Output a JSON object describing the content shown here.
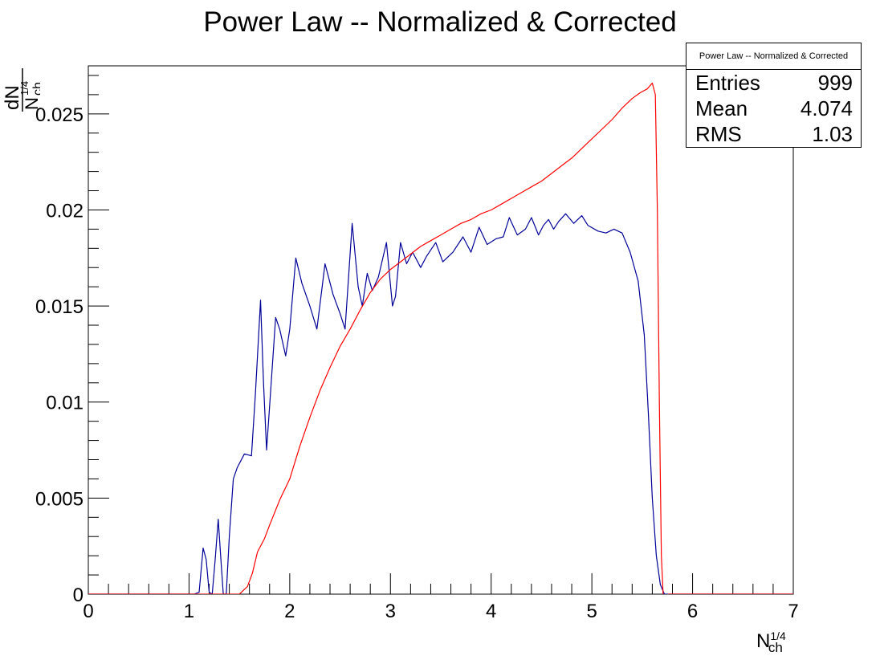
{
  "title": "Power Law -- Normalized & Corrected",
  "stats": {
    "name": "Power Law -- Normalized & Corrected",
    "rows": [
      {
        "label": "Entries",
        "value": "999"
      },
      {
        "label": "Mean",
        "value": "4.074"
      },
      {
        "label": "RMS",
        "value": "1.03"
      }
    ]
  },
  "axis_labels": {
    "x_main": "N",
    "x_sub": "ch",
    "x_sup": "1/4",
    "y_num": "dN",
    "y_den": "N",
    "y_den_sub": "ch",
    "y_den_sup": "1/4"
  },
  "chart_data": {
    "type": "line",
    "title": "Power Law -- Normalized & Corrected",
    "xlim": [
      0,
      7
    ],
    "ylim": [
      0,
      0.0275
    ],
    "x_ticks": [
      0,
      1,
      2,
      3,
      4,
      5,
      6,
      7
    ],
    "y_ticks": [
      0,
      0.005,
      0.01,
      0.015,
      0.02,
      0.025
    ],
    "x_tick_labels": [
      "0",
      "1",
      "2",
      "3",
      "4",
      "5",
      "6",
      "7"
    ],
    "y_tick_labels": [
      "0",
      "0.005",
      "0.01",
      "0.015",
      "0.02",
      "0.025"
    ],
    "grid": false,
    "series": [
      {
        "color": "#000099",
        "points": [
          [
            0,
            0
          ],
          [
            1.05,
            0
          ],
          [
            1.1,
            0.0001
          ],
          [
            1.14,
            0.0024
          ],
          [
            1.17,
            0.0018
          ],
          [
            1.2,
            0.0001
          ],
          [
            1.23,
            0
          ],
          [
            1.26,
            0.0018
          ],
          [
            1.29,
            0.0039
          ],
          [
            1.32,
            0.0015
          ],
          [
            1.34,
            0
          ],
          [
            1.37,
            0
          ],
          [
            1.4,
            0.003
          ],
          [
            1.44,
            0.006
          ],
          [
            1.48,
            0.0066
          ],
          [
            1.55,
            0.0073
          ],
          [
            1.62,
            0.0072
          ],
          [
            1.66,
            0.0105
          ],
          [
            1.71,
            0.0153
          ],
          [
            1.74,
            0.011
          ],
          [
            1.77,
            0.0075
          ],
          [
            1.8,
            0.0098
          ],
          [
            1.86,
            0.0144
          ],
          [
            1.9,
            0.0138
          ],
          [
            1.96,
            0.0124
          ],
          [
            2.0,
            0.0138
          ],
          [
            2.06,
            0.0175
          ],
          [
            2.12,
            0.0162
          ],
          [
            2.2,
            0.015
          ],
          [
            2.27,
            0.0138
          ],
          [
            2.35,
            0.0172
          ],
          [
            2.43,
            0.0156
          ],
          [
            2.5,
            0.0146
          ],
          [
            2.55,
            0.0138
          ],
          [
            2.62,
            0.0193
          ],
          [
            2.68,
            0.016
          ],
          [
            2.72,
            0.015
          ],
          [
            2.77,
            0.0167
          ],
          [
            2.82,
            0.0158
          ],
          [
            2.88,
            0.0165
          ],
          [
            2.96,
            0.0183
          ],
          [
            3.02,
            0.015
          ],
          [
            3.05,
            0.0155
          ],
          [
            3.1,
            0.0183
          ],
          [
            3.16,
            0.0172
          ],
          [
            3.22,
            0.0178
          ],
          [
            3.3,
            0.017
          ],
          [
            3.36,
            0.0176
          ],
          [
            3.45,
            0.0183
          ],
          [
            3.52,
            0.0173
          ],
          [
            3.62,
            0.0178
          ],
          [
            3.72,
            0.0186
          ],
          [
            3.8,
            0.0178
          ],
          [
            3.88,
            0.0191
          ],
          [
            3.96,
            0.0182
          ],
          [
            4.05,
            0.0185
          ],
          [
            4.12,
            0.0186
          ],
          [
            4.18,
            0.0196
          ],
          [
            4.26,
            0.0187
          ],
          [
            4.34,
            0.019
          ],
          [
            4.4,
            0.0196
          ],
          [
            4.47,
            0.0187
          ],
          [
            4.52,
            0.0192
          ],
          [
            4.57,
            0.0195
          ],
          [
            4.62,
            0.019
          ],
          [
            4.67,
            0.0194
          ],
          [
            4.74,
            0.0198
          ],
          [
            4.82,
            0.0193
          ],
          [
            4.9,
            0.0197
          ],
          [
            4.96,
            0.0192
          ],
          [
            5.06,
            0.0189
          ],
          [
            5.14,
            0.0188
          ],
          [
            5.22,
            0.019
          ],
          [
            5.3,
            0.0188
          ],
          [
            5.38,
            0.0178
          ],
          [
            5.46,
            0.0163
          ],
          [
            5.52,
            0.0135
          ],
          [
            5.56,
            0.0095
          ],
          [
            5.6,
            0.005
          ],
          [
            5.64,
            0.002
          ],
          [
            5.68,
            0.0005
          ],
          [
            5.72,
            0
          ],
          [
            7,
            0
          ]
        ]
      },
      {
        "color": "#ff0000",
        "points": [
          [
            0,
            0
          ],
          [
            1.5,
            0
          ],
          [
            1.52,
            0.0001
          ],
          [
            1.58,
            0.0004
          ],
          [
            1.63,
            0.0011
          ],
          [
            1.68,
            0.0022
          ],
          [
            1.75,
            0.0029
          ],
          [
            1.8,
            0.0036
          ],
          [
            1.9,
            0.0049
          ],
          [
            2.0,
            0.006
          ],
          [
            2.1,
            0.0077
          ],
          [
            2.2,
            0.0092
          ],
          [
            2.3,
            0.0106
          ],
          [
            2.4,
            0.0118
          ],
          [
            2.5,
            0.0129
          ],
          [
            2.6,
            0.0138
          ],
          [
            2.7,
            0.0148
          ],
          [
            2.8,
            0.0157
          ],
          [
            2.9,
            0.0164
          ],
          [
            3.0,
            0.0169
          ],
          [
            3.1,
            0.0173
          ],
          [
            3.2,
            0.0177
          ],
          [
            3.3,
            0.0181
          ],
          [
            3.4,
            0.0184
          ],
          [
            3.5,
            0.0187
          ],
          [
            3.6,
            0.019
          ],
          [
            3.7,
            0.0193
          ],
          [
            3.8,
            0.0195
          ],
          [
            3.9,
            0.0198
          ],
          [
            4.0,
            0.02
          ],
          [
            4.1,
            0.0203
          ],
          [
            4.2,
            0.0206
          ],
          [
            4.3,
            0.0209
          ],
          [
            4.4,
            0.0212
          ],
          [
            4.5,
            0.0215
          ],
          [
            4.6,
            0.0219
          ],
          [
            4.7,
            0.0223
          ],
          [
            4.8,
            0.0227
          ],
          [
            4.9,
            0.0232
          ],
          [
            5.0,
            0.0237
          ],
          [
            5.1,
            0.0242
          ],
          [
            5.2,
            0.0247
          ],
          [
            5.3,
            0.0253
          ],
          [
            5.4,
            0.0258
          ],
          [
            5.48,
            0.0261
          ],
          [
            5.55,
            0.0263
          ],
          [
            5.6,
            0.0266
          ],
          [
            5.63,
            0.026
          ],
          [
            5.65,
            0.02
          ],
          [
            5.67,
            0.01
          ],
          [
            5.69,
            0.002
          ],
          [
            5.71,
            -0.0003
          ],
          [
            5.73,
            -0.0002
          ],
          [
            5.76,
            0
          ],
          [
            7,
            0
          ]
        ]
      }
    ]
  }
}
